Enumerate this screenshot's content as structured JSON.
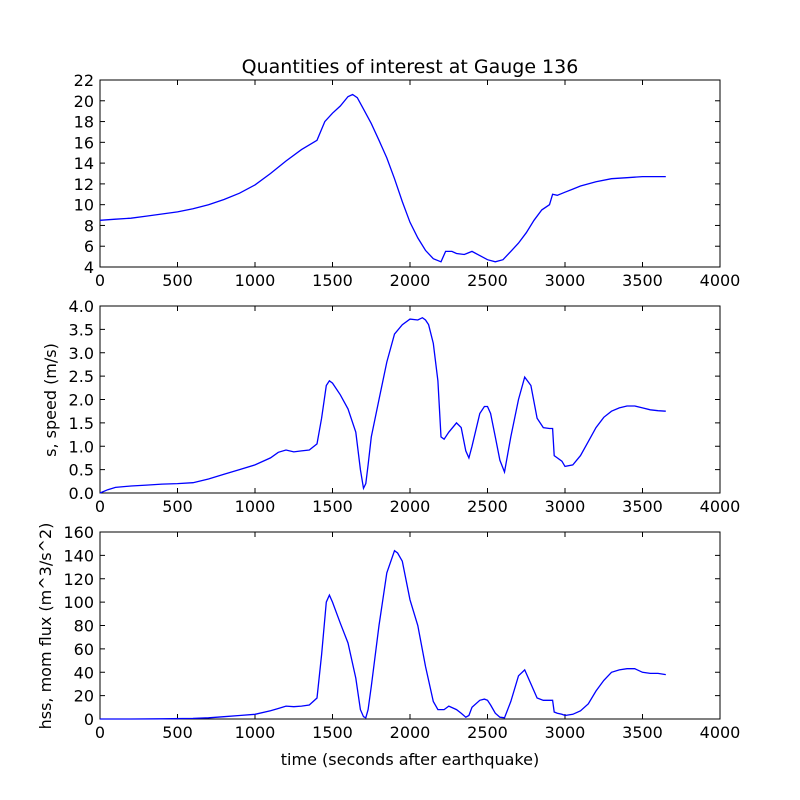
{
  "chart_data": [
    {
      "type": "line",
      "title": "Quantities of interest at Gauge 136",
      "xlabel": "",
      "ylabel": "",
      "xlim": [
        0,
        4000
      ],
      "ylim": [
        4,
        22
      ],
      "xticks": [
        0,
        500,
        1000,
        1500,
        2000,
        2500,
        3000,
        3500,
        4000
      ],
      "yticks": [
        4,
        6,
        8,
        10,
        12,
        14,
        16,
        18,
        20,
        22
      ],
      "grid": false,
      "color": "#0000ff",
      "series": [
        {
          "x": [
            0,
            100,
            200,
            300,
            400,
            500,
            600,
            700,
            800,
            900,
            1000,
            1100,
            1200,
            1300,
            1400,
            1450,
            1500,
            1550,
            1600,
            1630,
            1660,
            1700,
            1750,
            1800,
            1850,
            1900,
            1950,
            2000,
            2050,
            2100,
            2150,
            2200,
            2230,
            2270,
            2300,
            2350,
            2400,
            2450,
            2500,
            2550,
            2600,
            2650,
            2700,
            2750,
            2800,
            2850,
            2900,
            2920,
            2950,
            3000,
            3050,
            3100,
            3200,
            3300,
            3400,
            3500,
            3600,
            3650
          ],
          "y": [
            8.5,
            8.6,
            8.7,
            8.9,
            9.1,
            9.3,
            9.6,
            10.0,
            10.5,
            11.1,
            11.9,
            13.0,
            14.2,
            15.3,
            16.2,
            18.0,
            18.8,
            19.5,
            20.4,
            20.6,
            20.3,
            19.2,
            17.8,
            16.2,
            14.5,
            12.5,
            10.3,
            8.3,
            6.8,
            5.6,
            4.8,
            4.5,
            5.5,
            5.5,
            5.3,
            5.2,
            5.5,
            5.1,
            4.7,
            4.5,
            4.7,
            5.5,
            6.3,
            7.3,
            8.5,
            9.5,
            10.0,
            11.0,
            10.9,
            11.2,
            11.5,
            11.8,
            12.2,
            12.5,
            12.6,
            12.7,
            12.7,
            12.7
          ]
        }
      ]
    },
    {
      "type": "line",
      "title": "",
      "xlabel": "",
      "ylabel": "s, speed (m/s)",
      "xlim": [
        0,
        4000
      ],
      "ylim": [
        0,
        4
      ],
      "xticks": [
        0,
        500,
        1000,
        1500,
        2000,
        2500,
        3000,
        3500,
        4000
      ],
      "yticks": [
        0.0,
        0.5,
        1.0,
        1.5,
        2.0,
        2.5,
        3.0,
        3.5,
        4.0
      ],
      "ytick_labels": [
        "0.0",
        "0.5",
        "1.0",
        "1.5",
        "2.0",
        "2.5",
        "3.0",
        "3.5",
        "4.0"
      ],
      "grid": false,
      "color": "#0000ff",
      "series": [
        {
          "x": [
            0,
            50,
            100,
            200,
            300,
            400,
            500,
            600,
            700,
            800,
            900,
            1000,
            1100,
            1150,
            1200,
            1250,
            1300,
            1350,
            1400,
            1430,
            1460,
            1480,
            1500,
            1550,
            1600,
            1650,
            1680,
            1700,
            1715,
            1730,
            1750,
            1800,
            1850,
            1900,
            1950,
            2000,
            2050,
            2080,
            2100,
            2120,
            2150,
            2180,
            2200,
            2220,
            2250,
            2300,
            2330,
            2360,
            2380,
            2400,
            2450,
            2480,
            2500,
            2520,
            2550,
            2580,
            2610,
            2650,
            2700,
            2740,
            2780,
            2820,
            2860,
            2900,
            2920,
            2930,
            2950,
            2980,
            3000,
            3050,
            3100,
            3150,
            3200,
            3250,
            3300,
            3350,
            3400,
            3450,
            3500,
            3550,
            3600,
            3650
          ],
          "y": [
            0.0,
            0.07,
            0.12,
            0.15,
            0.17,
            0.19,
            0.2,
            0.22,
            0.3,
            0.4,
            0.5,
            0.6,
            0.75,
            0.87,
            0.92,
            0.88,
            0.9,
            0.92,
            1.05,
            1.6,
            2.3,
            2.4,
            2.35,
            2.1,
            1.8,
            1.3,
            0.5,
            0.1,
            0.2,
            0.6,
            1.2,
            2.0,
            2.8,
            3.4,
            3.6,
            3.72,
            3.7,
            3.75,
            3.7,
            3.6,
            3.2,
            2.4,
            1.2,
            1.15,
            1.3,
            1.5,
            1.4,
            0.9,
            0.75,
            1.0,
            1.7,
            1.85,
            1.85,
            1.7,
            1.2,
            0.7,
            0.45,
            1.2,
            2.0,
            2.48,
            2.3,
            1.6,
            1.4,
            1.38,
            1.38,
            0.8,
            0.75,
            0.68,
            0.57,
            0.6,
            0.8,
            1.1,
            1.4,
            1.62,
            1.75,
            1.82,
            1.86,
            1.86,
            1.82,
            1.78,
            1.76,
            1.75
          ]
        }
      ]
    },
    {
      "type": "line",
      "title": "",
      "xlabel": "time (seconds after earthquake)",
      "ylabel": "hss, mom flux (m^3/s^2)",
      "xlim": [
        0,
        4000
      ],
      "ylim": [
        0,
        160
      ],
      "xticks": [
        0,
        500,
        1000,
        1500,
        2000,
        2500,
        3000,
        3500,
        4000
      ],
      "yticks": [
        0,
        20,
        40,
        60,
        80,
        100,
        120,
        140,
        160
      ],
      "grid": false,
      "color": "#0000ff",
      "series": [
        {
          "x": [
            0,
            200,
            400,
            600,
            700,
            800,
            900,
            1000,
            1100,
            1150,
            1200,
            1250,
            1300,
            1350,
            1400,
            1430,
            1460,
            1480,
            1500,
            1550,
            1600,
            1650,
            1680,
            1700,
            1715,
            1730,
            1750,
            1800,
            1850,
            1900,
            1920,
            1950,
            2000,
            2050,
            2100,
            2150,
            2180,
            2220,
            2250,
            2300,
            2330,
            2360,
            2380,
            2400,
            2450,
            2480,
            2500,
            2520,
            2550,
            2580,
            2610,
            2650,
            2700,
            2740,
            2780,
            2820,
            2860,
            2900,
            2920,
            2930,
            2950,
            2980,
            3000,
            3050,
            3100,
            3150,
            3200,
            3250,
            3300,
            3350,
            3400,
            3450,
            3500,
            3550,
            3600,
            3650
          ],
          "y": [
            0,
            0,
            0.2,
            0.5,
            1,
            2,
            3,
            4,
            7,
            9,
            11,
            10.5,
            11,
            12,
            18,
            55,
            100,
            106,
            100,
            82,
            65,
            35,
            8,
            2,
            1,
            8,
            28,
            80,
            125,
            144,
            142,
            135,
            102,
            80,
            45,
            15,
            8,
            8,
            11,
            8,
            5,
            1.5,
            3,
            10,
            16,
            17,
            16,
            12,
            5,
            1.5,
            1,
            15,
            37,
            42,
            30,
            18,
            16,
            16,
            16,
            6,
            5,
            4,
            3,
            4,
            7,
            13,
            24,
            33,
            40,
            42,
            43,
            43,
            40,
            39,
            39,
            38
          ]
        }
      ]
    }
  ]
}
